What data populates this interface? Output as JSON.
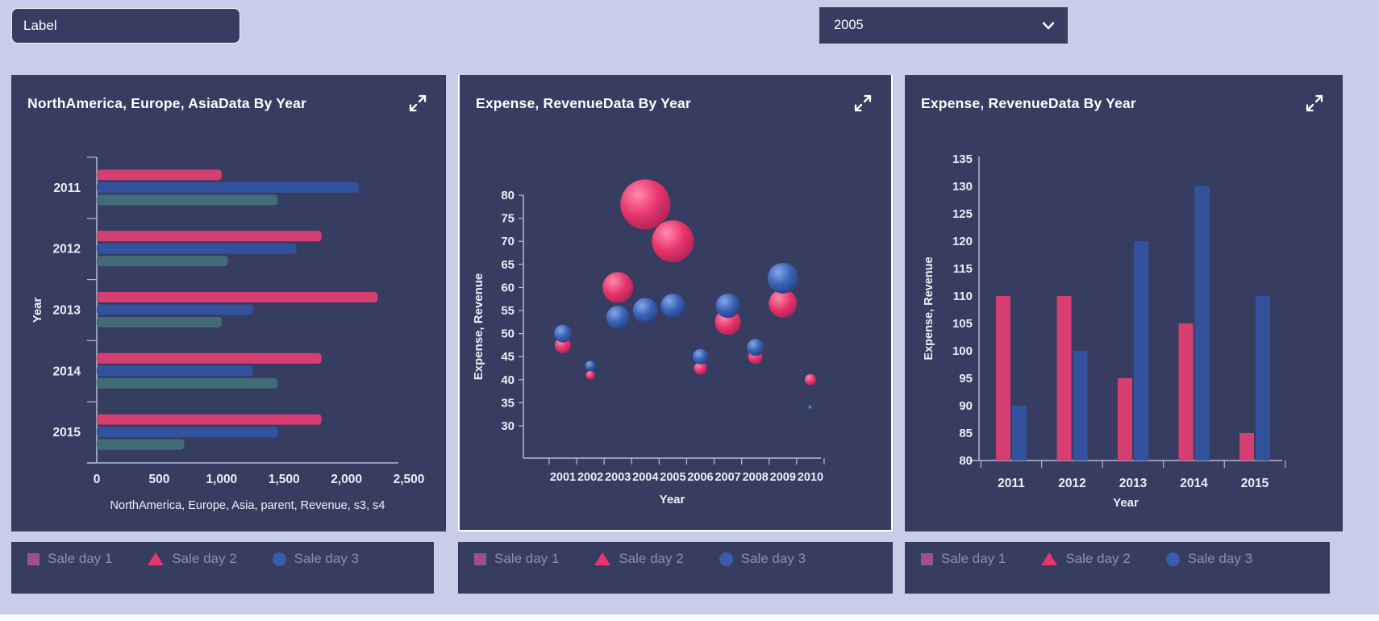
{
  "topbar": {
    "label_input": {
      "value": "Label"
    },
    "year_select": {
      "value": "2005"
    }
  },
  "legend": {
    "items": [
      {
        "label": "Sale day 1",
        "marker": "square",
        "color": "#9c5189"
      },
      {
        "label": "Sale day 2",
        "marker": "triangle",
        "color": "#e8356d"
      },
      {
        "label": "Sale day 3",
        "marker": "circle",
        "color": "#3a5cab"
      }
    ]
  },
  "style": {
    "page_bg": "#c9cde9",
    "card_bg": "#363d60",
    "card2_border": "#ffffff",
    "axis_color": "#b6bbd2",
    "tick_color": "#eceef6",
    "legend_text": "#8b90a7",
    "pink": "#d63e72",
    "blue": "#33529e",
    "teal": "#406b77",
    "bubble_pink": [
      "#ff8bb0",
      "#e8356d",
      "#ad2456"
    ],
    "bubble_blue": [
      "#82a7e8",
      "#3a62b5",
      "#27417e"
    ]
  },
  "chart_data": [
    {
      "type": "bar",
      "orientation": "horizontal",
      "title": "NorthAmerica, Europe, AsiaData By Year",
      "categories": [
        "2011",
        "2012",
        "2013",
        "2014",
        "2015"
      ],
      "series": [
        {
          "name": "Revenue",
          "color": "#d63e72",
          "values": [
            1000,
            1800,
            2250,
            1800,
            1800
          ]
        },
        {
          "name": "s3",
          "color": "#33529e",
          "values": [
            2100,
            1600,
            1250,
            1250,
            1450
          ]
        },
        {
          "name": "s4",
          "color": "#406b77",
          "values": [
            1450,
            1050,
            1000,
            1450,
            700
          ]
        }
      ],
      "xlabel": "NorthAmerica, Europe, Asia, parent, Revenue, s3, s4",
      "ylabel": "Year",
      "xlim": [
        0,
        2500
      ],
      "xticks": [
        0,
        500,
        1000,
        1500,
        2000,
        2500
      ],
      "grid": false,
      "legend_position": "below-card"
    },
    {
      "type": "scatter",
      "subtype": "bubble",
      "title": "Expense, RevenueData By Year",
      "xlabel": "Year",
      "ylabel": "Expense, Revenue",
      "xcategories": [
        2001,
        2002,
        2003,
        2004,
        2005,
        2006,
        2007,
        2008,
        2009,
        2010
      ],
      "ylim": [
        30,
        80
      ],
      "yticks": [
        30,
        35,
        40,
        45,
        50,
        55,
        60,
        65,
        70,
        75,
        80
      ],
      "grid": false,
      "series": [
        {
          "name": "Expense",
          "color": "pink",
          "points": [
            {
              "x": 2001,
              "y": 47.5,
              "r": 10
            },
            {
              "x": 2002,
              "y": 41,
              "r": 5.5
            },
            {
              "x": 2003,
              "y": 60,
              "r": 19
            },
            {
              "x": 2004,
              "y": 78,
              "r": 31
            },
            {
              "x": 2005,
              "y": 70,
              "r": 26
            },
            {
              "x": 2006,
              "y": 42.5,
              "r": 8
            },
            {
              "x": 2007,
              "y": 52.5,
              "r": 16
            },
            {
              "x": 2008,
              "y": 45,
              "r": 9
            },
            {
              "x": 2009,
              "y": 56.5,
              "r": 17.5
            },
            {
              "x": 2010,
              "y": 40,
              "r": 7
            }
          ]
        },
        {
          "name": "Revenue",
          "color": "blue",
          "points": [
            {
              "x": 2001,
              "y": 50,
              "r": 11
            },
            {
              "x": 2002,
              "y": 43,
              "r": 6.5
            },
            {
              "x": 2003,
              "y": 53.5,
              "r": 14.5
            },
            {
              "x": 2004,
              "y": 55,
              "r": 15.5
            },
            {
              "x": 2005,
              "y": 56,
              "r": 15
            },
            {
              "x": 2006,
              "y": 45,
              "r": 9.5
            },
            {
              "x": 2007,
              "y": 56,
              "r": 15
            },
            {
              "x": 2008,
              "y": 47,
              "r": 10.5
            },
            {
              "x": 2009,
              "y": 62,
              "r": 19
            },
            {
              "x": 2010,
              "y": 34,
              "r": 2.5
            }
          ]
        }
      ]
    },
    {
      "type": "bar",
      "orientation": "vertical",
      "title": "Expense, RevenueData By Year",
      "categories": [
        "2011",
        "2012",
        "2013",
        "2014",
        "2015"
      ],
      "series": [
        {
          "name": "Expense",
          "color": "#d63e72",
          "values": [
            110,
            110,
            95,
            105,
            85
          ]
        },
        {
          "name": "Revenue",
          "color": "#33529e",
          "values": [
            90,
            100,
            120,
            130,
            110
          ]
        }
      ],
      "xlabel": "Year",
      "ylabel": "Expense, Revenue",
      "ylim": [
        80,
        135
      ],
      "yticks": [
        80,
        85,
        90,
        95,
        100,
        105,
        110,
        115,
        120,
        125,
        130,
        135
      ],
      "grid": false,
      "legend_position": "below-card"
    }
  ]
}
